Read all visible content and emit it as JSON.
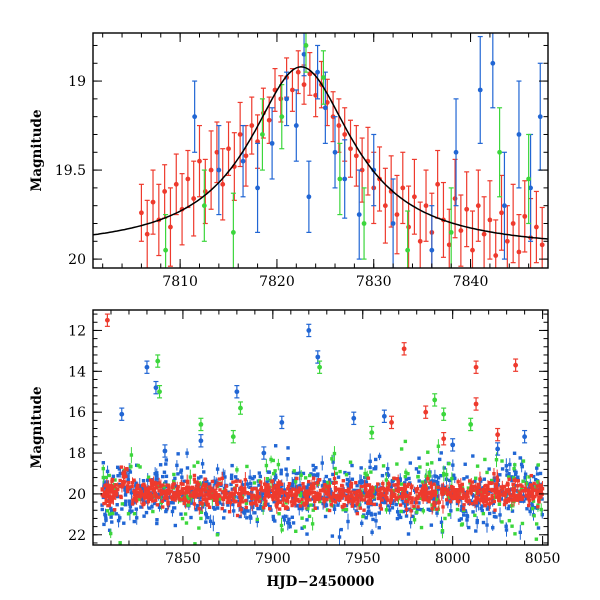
{
  "chart_data": [
    {
      "type": "scatter",
      "title": "",
      "xlabel": "",
      "ylabel": "Magnitude",
      "xlim": [
        7801,
        7848
      ],
      "ylim": [
        20.05,
        18.73
      ],
      "y_inverted": true,
      "xticks": [
        7810,
        7820,
        7830,
        7840
      ],
      "yticks": [
        19,
        19.5,
        20
      ],
      "xtick_labels": [
        "7810",
        "7820",
        "7830",
        "7840"
      ],
      "ytick_labels": [
        "19",
        "19.5",
        "20"
      ],
      "model_curve": {
        "color": "#000000",
        "peak_x": 7822.5,
        "peak_magnitude": 18.92,
        "baseline_magnitude": 19.95,
        "width_days": 6.5
      },
      "series": [
        {
          "color": "#ee3a2d",
          "points": [
            [
              7806,
              19.74,
              0.16
            ],
            [
              7806.6,
              19.86,
              0.19
            ],
            [
              7807.2,
              19.68,
              0.18
            ],
            [
              7807.8,
              19.78,
              0.2
            ],
            [
              7808.4,
              19.62,
              0.15
            ],
            [
              7809,
              19.82,
              0.22
            ],
            [
              7809.6,
              19.58,
              0.17
            ],
            [
              7810.2,
              19.72,
              0.2
            ],
            [
              7810.8,
              19.55,
              0.16
            ],
            [
              7811.4,
              19.66,
              0.21
            ],
            [
              7812,
              19.45,
              0.2
            ],
            [
              7812.6,
              19.62,
              0.18
            ],
            [
              7813.2,
              19.5,
              0.22
            ],
            [
              7813.8,
              19.4,
              0.17
            ],
            [
              7814.4,
              19.58,
              0.2
            ],
            [
              7815,
              19.38,
              0.15
            ],
            [
              7815.6,
              19.48,
              0.19
            ],
            [
              7816.2,
              19.3,
              0.18
            ],
            [
              7816.8,
              19.42,
              0.17
            ],
            [
              7817.4,
              19.25,
              0.16
            ],
            [
              7818,
              19.34,
              0.15
            ],
            [
              7818.6,
              19.18,
              0.14
            ],
            [
              7819.2,
              19.22,
              0.13
            ],
            [
              7819.8,
              19.05,
              0.12
            ],
            [
              7820.4,
              19.1,
              0.13
            ],
            [
              7821,
              18.98,
              0.11
            ],
            [
              7821.6,
              19.05,
              0.12
            ],
            [
              7822.2,
              18.95,
              0.12
            ],
            [
              7822.8,
              19.02,
              0.11
            ],
            [
              7823.4,
              18.96,
              0.12
            ],
            [
              7824,
              19.08,
              0.12
            ],
            [
              7824.6,
              19.02,
              0.13
            ],
            [
              7825.2,
              19.12,
              0.13
            ],
            [
              7825.8,
              19.2,
              0.14
            ],
            [
              7826.4,
              19.25,
              0.15
            ],
            [
              7827,
              19.3,
              0.15
            ],
            [
              7827.6,
              19.38,
              0.16
            ],
            [
              7828.2,
              19.42,
              0.17
            ],
            [
              7828.8,
              19.5,
              0.18
            ],
            [
              7829.4,
              19.45,
              0.19
            ],
            [
              7830,
              19.6,
              0.2
            ],
            [
              7830.6,
              19.55,
              0.18
            ],
            [
              7831.2,
              19.7,
              0.21
            ],
            [
              7831.8,
              19.62,
              0.2
            ],
            [
              7832.4,
              19.75,
              0.22
            ],
            [
              7833,
              19.6,
              0.2
            ],
            [
              7833.6,
              19.82,
              0.23
            ],
            [
              7834.2,
              19.65,
              0.21
            ],
            [
              7834.8,
              19.9,
              0.22
            ],
            [
              7835.4,
              19.7,
              0.2
            ],
            [
              7836,
              19.85,
              0.22
            ],
            [
              7836.6,
              19.58,
              0.19
            ],
            [
              7837.2,
              19.78,
              0.21
            ],
            [
              7837.8,
              19.92,
              0.2
            ],
            [
              7838.4,
              19.66,
              0.22
            ],
            [
              7839,
              19.84,
              0.2
            ],
            [
              7839.6,
              19.72,
              0.21
            ],
            [
              7840.2,
              19.95,
              0.22
            ],
            [
              7840.8,
              19.7,
              0.2
            ],
            [
              7841.4,
              19.86,
              0.21
            ],
            [
              7842,
              19.78,
              0.22
            ],
            [
              7842.6,
              19.98,
              0.2
            ],
            [
              7843.2,
              19.74,
              0.21
            ],
            [
              7843.8,
              19.9,
              0.2
            ],
            [
              7844.4,
              19.8,
              0.22
            ],
            [
              7845,
              19.96,
              0.21
            ],
            [
              7845.6,
              19.76,
              0.2
            ],
            [
              7846.2,
              19.88,
              0.22
            ],
            [
              7846.8,
              19.82,
              0.2
            ],
            [
              7847.4,
              19.92,
              0.21
            ]
          ]
        },
        {
          "color": "#2166d4",
          "points": [
            [
              7811.5,
              19.2,
              0.2
            ],
            [
              7814,
              19.5,
              0.25
            ],
            [
              7816.5,
              19.45,
              0.2
            ],
            [
              7818,
              19.6,
              0.25
            ],
            [
              7819.5,
              19.35,
              0.2
            ],
            [
              7821,
              19.1,
              0.15
            ],
            [
              7822,
              19.25,
              0.2
            ],
            [
              7822.8,
              18.85,
              0.12
            ],
            [
              7823.3,
              19.65,
              0.2
            ],
            [
              7824.2,
              18.95,
              0.15
            ],
            [
              7825,
              19.15,
              0.2
            ],
            [
              7826,
              19.4,
              0.2
            ],
            [
              7827,
              19.55,
              0.22
            ],
            [
              7828.5,
              19.75,
              0.25
            ],
            [
              7830,
              19.5,
              0.2
            ],
            [
              7832,
              19.8,
              0.25
            ],
            [
              7836,
              19.95,
              0.25
            ],
            [
              7838.5,
              19.4,
              0.3
            ],
            [
              7841,
              19.05,
              0.3
            ],
            [
              7842.3,
              18.9,
              0.25
            ],
            [
              7843.5,
              19.7,
              0.3
            ],
            [
              7845,
              19.3,
              0.3
            ],
            [
              7846.2,
              19.6,
              0.3
            ],
            [
              7847.2,
              19.2,
              0.3
            ]
          ]
        },
        {
          "color": "#3cd63c",
          "points": [
            [
              7808.5,
              19.95,
              0.2
            ],
            [
              7812.5,
              19.7,
              0.2
            ],
            [
              7815.5,
              19.85,
              0.22
            ],
            [
              7818.5,
              19.3,
              0.2
            ],
            [
              7820.5,
              19.2,
              0.18
            ],
            [
              7823,
              18.8,
              0.15
            ],
            [
              7824.8,
              18.98,
              0.15
            ],
            [
              7826.5,
              19.55,
              0.2
            ],
            [
              7829,
              19.8,
              0.2
            ],
            [
              7833.5,
              19.95,
              0.22
            ],
            [
              7838,
              19.85,
              0.25
            ],
            [
              7843,
              19.4,
              0.25
            ],
            [
              7846,
              19.55,
              0.25
            ]
          ]
        }
      ]
    },
    {
      "type": "scatter",
      "title": "",
      "xlabel": "HJD−2450000",
      "ylabel": "Magnitude",
      "xlim": [
        7800,
        8053
      ],
      "ylim": [
        22.5,
        11
      ],
      "y_inverted": true,
      "xticks": [
        7850,
        7900,
        7950,
        8000,
        8050
      ],
      "yticks": [
        12,
        14,
        16,
        18,
        20,
        22
      ],
      "xtick_labels": [
        "7850",
        "7900",
        "7950",
        "8000",
        "8050"
      ],
      "ytick_labels": [
        "12",
        "14",
        "16",
        "18",
        "20",
        "22"
      ],
      "baseline_magnitude": 20.0,
      "series": [
        {
          "color": "#2166d4",
          "points": [
            [
              7816,
              16.1,
              0.3
            ],
            [
              7830,
              13.8,
              0.3
            ],
            [
              7835,
              14.8,
              0.3
            ],
            [
              7880,
              15.0,
              0.3
            ],
            [
              7905,
              16.5,
              0.3
            ],
            [
              7920,
              12.0,
              0.3
            ],
            [
              7925,
              13.3,
              0.3
            ],
            [
              7945,
              16.3,
              0.3
            ],
            [
              7962,
              16.2,
              0.3
            ],
            [
              8000,
              17.6,
              0.3
            ],
            [
              8025,
              17.8,
              0.3
            ],
            [
              8040,
              17.2,
              0.3
            ],
            [
              7860,
              17.4,
              0.3
            ],
            [
              7840,
              17.9,
              0.3
            ],
            [
              7895,
              18.0,
              0.3
            ]
          ]
        },
        {
          "color": "#3cd63c",
          "points": [
            [
              7836,
              13.5,
              0.3
            ],
            [
              7837,
              15.0,
              0.3
            ],
            [
              7860,
              16.6,
              0.3
            ],
            [
              7878,
              17.2,
              0.3
            ],
            [
              7882,
              15.8,
              0.3
            ],
            [
              7926,
              13.8,
              0.3
            ],
            [
              7990,
              15.4,
              0.3
            ],
            [
              7995,
              16.1,
              0.3
            ],
            [
              8010,
              16.6,
              0.3
            ],
            [
              7955,
              17.0,
              0.3
            ]
          ]
        },
        {
          "color": "#ee3a2d",
          "points": [
            [
              7808,
              11.5,
              0.3
            ],
            [
              7973,
              12.9,
              0.3
            ],
            [
              8013,
              13.8,
              0.3
            ],
            [
              8035,
              13.7,
              0.3
            ],
            [
              8013,
              15.6,
              0.3
            ],
            [
              7985,
              16.0,
              0.3
            ],
            [
              7966,
              16.5,
              0.3
            ],
            [
              7995,
              17.3,
              0.3
            ],
            [
              8025,
              17.1,
              0.3
            ]
          ]
        }
      ]
    }
  ]
}
